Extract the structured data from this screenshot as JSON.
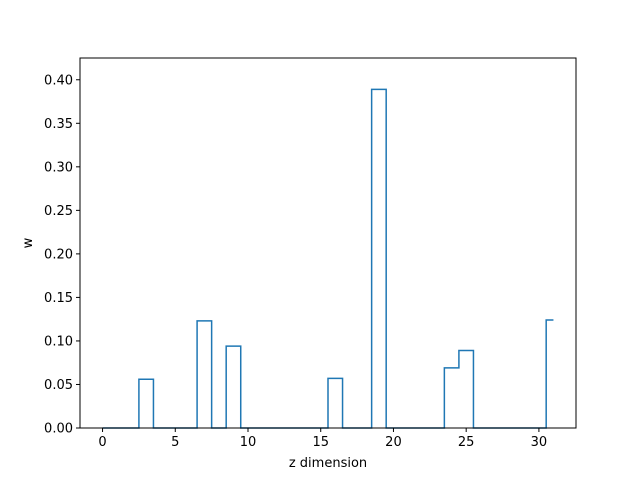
{
  "chart_data": {
    "type": "line",
    "drawstyle": "steps-mid",
    "xlabel": "z dimension",
    "ylabel": "w",
    "xlim": [
      -1.55,
      32.55
    ],
    "ylim": [
      0,
      0.425
    ],
    "xticks": [
      0,
      5,
      10,
      15,
      20,
      25,
      30
    ],
    "yticks": [
      0.0,
      0.05,
      0.1,
      0.15,
      0.2,
      0.25,
      0.3,
      0.35,
      0.4
    ],
    "ytick_labels": [
      "0.00",
      "0.05",
      "0.10",
      "0.15",
      "0.20",
      "0.25",
      "0.30",
      "0.35",
      "0.40"
    ],
    "grid": false,
    "series": [
      {
        "color": "#1f77b4",
        "x": [
          0,
          1,
          2,
          3,
          4,
          5,
          6,
          7,
          8,
          9,
          10,
          11,
          12,
          13,
          14,
          15,
          16,
          17,
          18,
          19,
          20,
          21,
          22,
          23,
          24,
          25,
          26,
          27,
          28,
          29,
          30,
          31
        ],
        "y": [
          0,
          0,
          0,
          0.056,
          0,
          0,
          0,
          0.123,
          0,
          0.094,
          0,
          0,
          0,
          0,
          0,
          0,
          0.057,
          0,
          0,
          0.389,
          0,
          0,
          0,
          0,
          0.069,
          0.089,
          0,
          0,
          0,
          0,
          0,
          0.124
        ]
      }
    ]
  }
}
